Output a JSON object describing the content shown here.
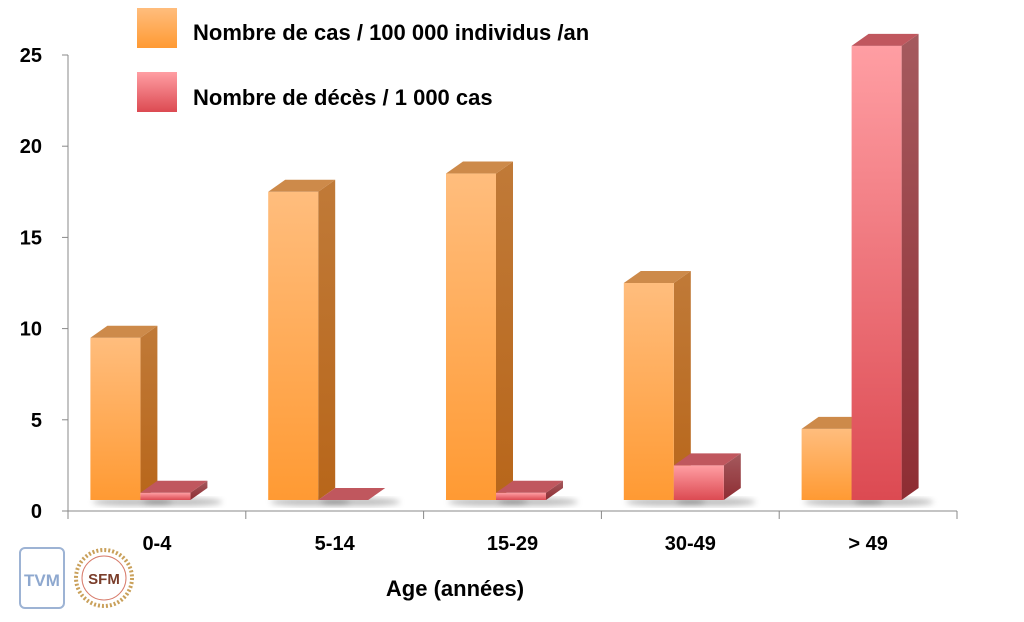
{
  "chart_data": {
    "type": "bar",
    "categories": [
      "0-4",
      "5-14",
      "15-29",
      "30-49",
      "> 49"
    ],
    "series": [
      {
        "name": "Nombre de cas / 100 000 individus /an",
        "values": [
          9.5,
          17.5,
          18.5,
          12.5,
          4.5
        ],
        "color": "#ff9d3c"
      },
      {
        "name": "Nombre de décès / 1 000 cas",
        "values": [
          1.0,
          0.0,
          1.0,
          2.5,
          25.5
        ],
        "color": "#e25a62"
      }
    ],
    "title": "",
    "xlabel": "Age (années)",
    "ylabel": "",
    "ylim": [
      0,
      25
    ],
    "yticks": [
      0,
      5,
      10,
      15,
      20,
      25
    ],
    "legend": "top-left",
    "grid": false
  },
  "logos": [
    {
      "name": "tvm-logo",
      "text": "TVM"
    },
    {
      "name": "sfm-logo",
      "text": "SFM"
    }
  ]
}
